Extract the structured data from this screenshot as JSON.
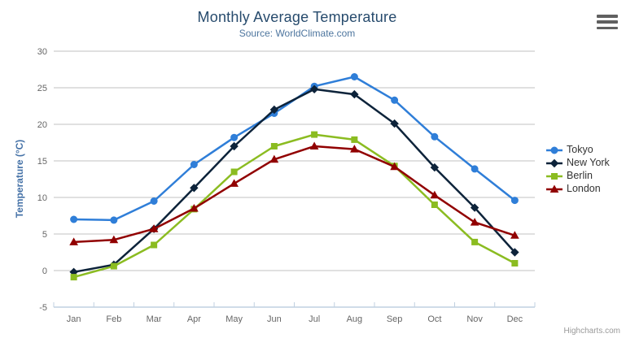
{
  "header": {
    "title": "Monthly Average Temperature",
    "subtitle": "Source: WorldClimate.com",
    "credits": "Highcharts.com"
  },
  "chart_data": {
    "type": "line",
    "title": "Monthly Average Temperature",
    "subtitle": "Source: WorldClimate.com",
    "categories": [
      "Jan",
      "Feb",
      "Mar",
      "Apr",
      "May",
      "Jun",
      "Jul",
      "Aug",
      "Sep",
      "Oct",
      "Nov",
      "Dec"
    ],
    "xlabel": "",
    "ylabel": "Temperature (°C)",
    "ylim": [
      -5,
      30
    ],
    "ytick_step": 5,
    "grid": true,
    "legend_position": "right-middle",
    "series": [
      {
        "name": "Tokyo",
        "color": "#2f7ed8",
        "marker": "circle",
        "values": [
          7.0,
          6.9,
          9.5,
          14.5,
          18.2,
          21.5,
          25.2,
          26.5,
          23.3,
          18.3,
          13.9,
          9.6
        ]
      },
      {
        "name": "New York",
        "color": "#0d233a",
        "marker": "diamond",
        "values": [
          -0.2,
          0.8,
          5.7,
          11.3,
          17.0,
          22.0,
          24.8,
          24.1,
          20.1,
          14.1,
          8.6,
          2.5
        ]
      },
      {
        "name": "Berlin",
        "color": "#8bbc21",
        "marker": "square",
        "values": [
          -0.9,
          0.6,
          3.5,
          8.4,
          13.5,
          17.0,
          18.6,
          17.9,
          14.3,
          9.0,
          3.9,
          1.0
        ]
      },
      {
        "name": "London",
        "color": "#910000",
        "marker": "triangle",
        "values": [
          3.9,
          4.2,
          5.7,
          8.5,
          11.9,
          15.2,
          17.0,
          16.6,
          14.2,
          10.3,
          6.6,
          4.8
        ]
      }
    ]
  },
  "colors": {
    "title": "#274b6d",
    "subtitle": "#4d759e",
    "axis_title": "#4572a7",
    "tick_label": "#666666",
    "grid": "#c0c0c0",
    "axis_line": "#c0d0e0",
    "legend_text": "#333333",
    "credit": "#999999"
  }
}
